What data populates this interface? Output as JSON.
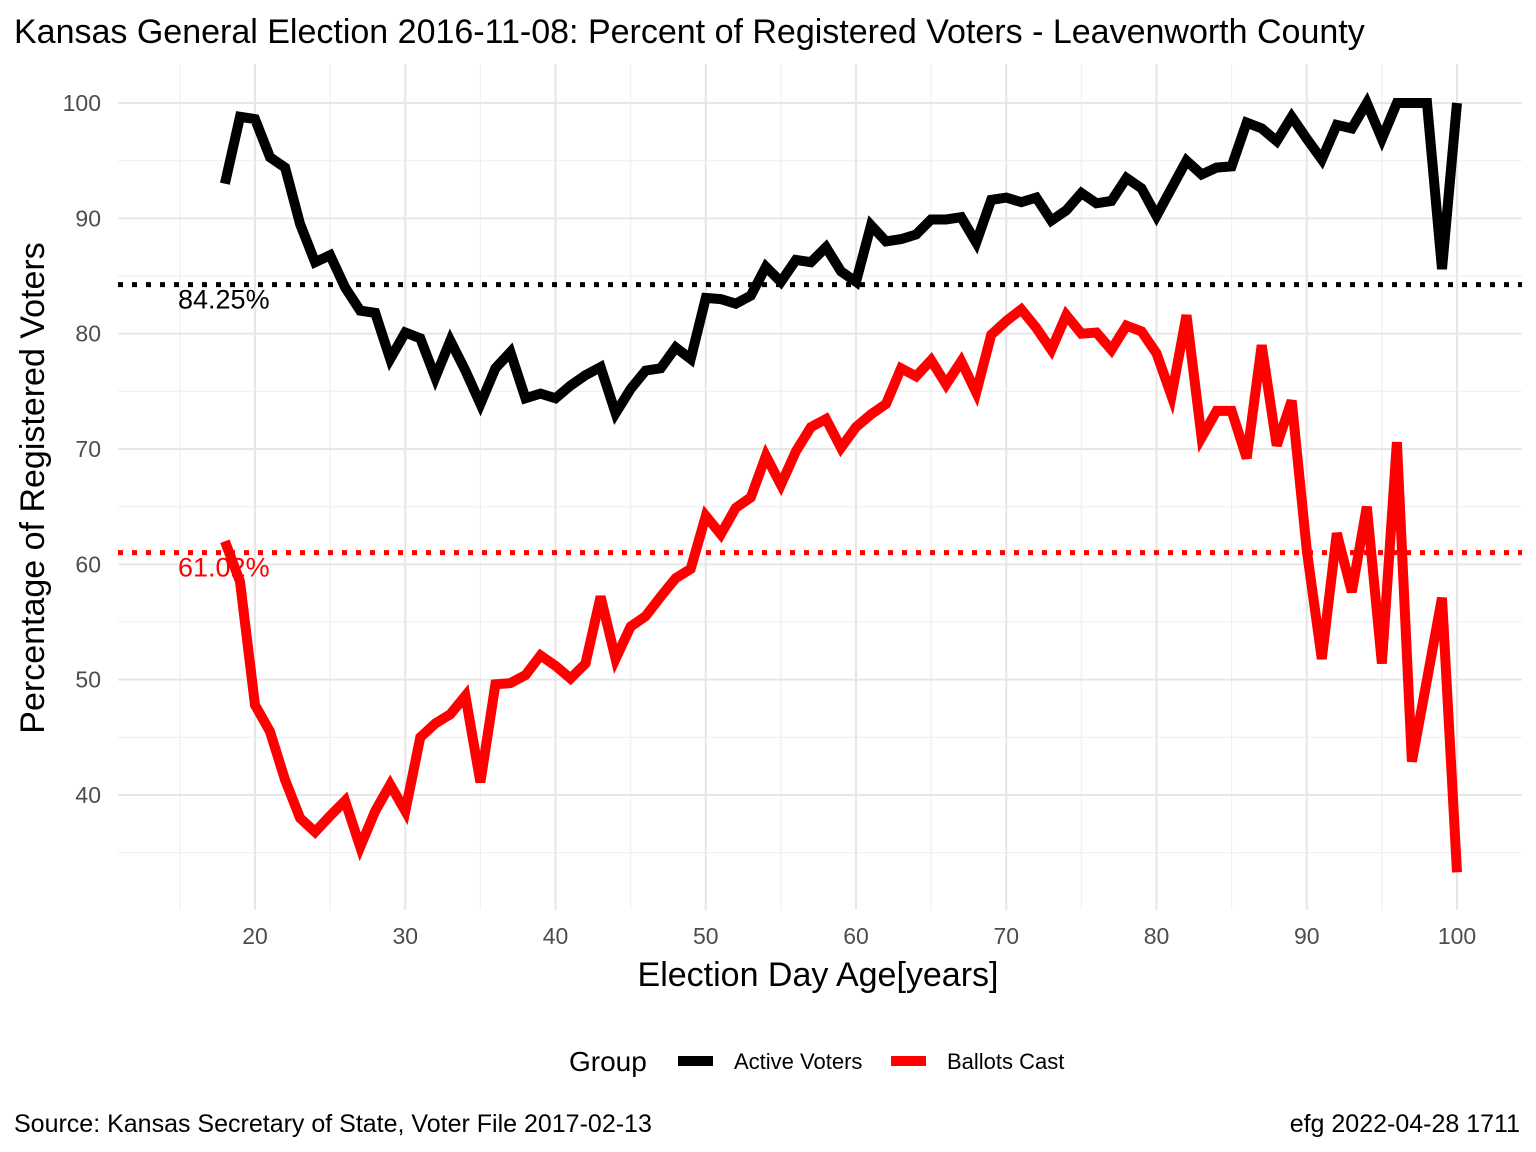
{
  "chart_data": {
    "type": "line",
    "title": "Kansas General Election 2016-11-08:  Percent of Registered Voters - Leavenworth County",
    "xlabel": "Election Day Age[years]",
    "ylabel": "Percentage of Registered Voters",
    "xlim": [
      10,
      105
    ],
    "ylim": [
      30,
      103.5
    ],
    "x_ticks": [
      20,
      30,
      40,
      50,
      60,
      70,
      80,
      90,
      100
    ],
    "y_ticks": [
      40,
      50,
      60,
      70,
      80,
      90,
      100
    ],
    "grid": true,
    "legend": {
      "title": "Group",
      "position": "bottom",
      "entries": [
        "Active Voters",
        "Ballots Cast"
      ]
    },
    "reference_lines": [
      {
        "value": 84.25,
        "label": "84.25%",
        "color": "#000000",
        "style": "dotted"
      },
      {
        "value": 61.02,
        "label": "61.02%",
        "color": "#ff0000",
        "style": "dotted"
      }
    ],
    "series": [
      {
        "name": "Active Voters",
        "color": "#000000",
        "x": [
          18,
          19,
          20,
          21,
          22,
          23,
          24,
          25,
          26,
          27,
          28,
          29,
          30,
          31,
          32,
          33,
          34,
          35,
          36,
          37,
          38,
          39,
          40,
          41,
          42,
          43,
          44,
          45,
          46,
          47,
          48,
          49,
          50,
          51,
          52,
          53,
          54,
          55,
          56,
          57,
          58,
          59,
          60,
          61,
          62,
          63,
          64,
          65,
          66,
          67,
          68,
          69,
          70,
          71,
          72,
          73,
          74,
          75,
          76,
          77,
          78,
          79,
          80,
          81,
          82,
          83,
          84,
          85,
          86,
          87,
          88,
          89,
          90,
          91,
          92,
          93,
          94,
          95,
          96,
          97,
          98,
          99,
          100
        ],
        "values": [
          93.0,
          98.8,
          98.6,
          95.3,
          94.4,
          89.5,
          86.2,
          86.8,
          84.0,
          82.0,
          81.8,
          77.8,
          80.1,
          79.6,
          76.2,
          79.4,
          76.8,
          73.9,
          77.0,
          78.4,
          74.4,
          74.8,
          74.4,
          75.5,
          76.4,
          77.1,
          73.1,
          75.2,
          76.8,
          77.0,
          78.8,
          77.8,
          83.1,
          83.0,
          82.6,
          83.3,
          85.8,
          84.5,
          86.4,
          86.2,
          87.5,
          85.4,
          84.5,
          89.4,
          88.0,
          88.2,
          88.6,
          89.9,
          89.9,
          90.1,
          87.9,
          91.6,
          91.8,
          91.4,
          91.8,
          89.8,
          90.7,
          92.2,
          91.3,
          91.5,
          93.5,
          92.6,
          90.2,
          92.6,
          95.0,
          93.8,
          94.4,
          94.5,
          98.3,
          97.8,
          96.7,
          98.8,
          96.9,
          95.1,
          98.1,
          97.8,
          100.0,
          96.9,
          100.0,
          100.0,
          100.0,
          85.6,
          100.0
        ]
      },
      {
        "name": "Ballots Cast",
        "color": "#ff0000",
        "x": [
          18,
          19,
          20,
          21,
          22,
          23,
          24,
          25,
          26,
          27,
          28,
          29,
          30,
          31,
          32,
          33,
          34,
          35,
          36,
          37,
          38,
          39,
          40,
          41,
          42,
          43,
          44,
          45,
          46,
          47,
          48,
          49,
          50,
          51,
          52,
          53,
          54,
          55,
          56,
          57,
          58,
          59,
          60,
          61,
          62,
          63,
          64,
          65,
          66,
          67,
          68,
          69,
          70,
          71,
          72,
          73,
          74,
          75,
          76,
          77,
          78,
          79,
          80,
          81,
          82,
          83,
          84,
          85,
          86,
          87,
          88,
          89,
          90,
          91,
          92,
          93,
          94,
          95,
          96,
          97,
          98,
          99,
          100
        ],
        "values": [
          62.0,
          58.5,
          47.8,
          45.5,
          41.3,
          38.0,
          36.8,
          38.2,
          39.5,
          35.5,
          38.6,
          40.9,
          38.6,
          45.0,
          46.2,
          47.0,
          48.6,
          41.1,
          49.6,
          49.7,
          50.4,
          52.1,
          51.2,
          50.1,
          51.4,
          57.2,
          51.8,
          54.6,
          55.5,
          57.2,
          58.8,
          59.6,
          64.2,
          62.6,
          64.9,
          65.8,
          69.4,
          66.9,
          69.8,
          71.9,
          72.6,
          70.1,
          71.9,
          73.0,
          73.9,
          77.0,
          76.3,
          77.7,
          75.6,
          77.6,
          74.9,
          79.9,
          81.1,
          82.1,
          80.5,
          78.6,
          81.6,
          80.0,
          80.1,
          78.6,
          80.7,
          80.2,
          78.3,
          74.6,
          81.6,
          71.0,
          73.3,
          73.3,
          69.2,
          79.0,
          70.3,
          74.2,
          61.2,
          51.8,
          62.7,
          57.6,
          65.0,
          51.4,
          70.6,
          42.9,
          50.0,
          57.1,
          33.3
        ]
      }
    ]
  },
  "caption": {
    "source": "Source:  Kansas Secretary of State, Voter File  2017-02-13",
    "credit": "efg 2022-04-28 1711"
  }
}
